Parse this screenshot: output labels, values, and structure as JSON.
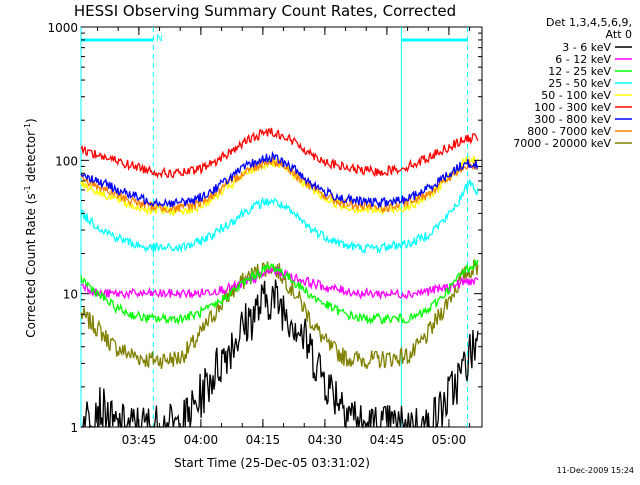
{
  "chart_data": {
    "type": "line",
    "title": "HESSI Observing Summary Count Rates, Corrected",
    "xlabel": "Start Time (25-Dec-05 03:31:02)",
    "ylabel_main": "Corrected Count Rate (s",
    "ylabel_sup1": "-1",
    "ylabel_mid": " detector",
    "ylabel_sup2": "-1",
    "ylabel_end": ")",
    "y_scale": "log",
    "ylim": [
      1,
      1000
    ],
    "xlim_minutes": [
      0,
      97
    ],
    "x_ticks": [
      {
        "min": 14,
        "label": "03:45"
      },
      {
        "min": 29,
        "label": "04:00"
      },
      {
        "min": 44,
        "label": "04:15"
      },
      {
        "min": 59,
        "label": "04:30"
      },
      {
        "min": 74,
        "label": "04:45"
      },
      {
        "min": 89,
        "label": "05:00"
      }
    ],
    "y_ticks": [
      {
        "value": 1,
        "label": "1"
      },
      {
        "value": 10,
        "label": "10"
      },
      {
        "value": 100,
        "label": "100"
      },
      {
        "value": 1000,
        "label": "1000"
      }
    ],
    "legend_header": [
      "Det 1,3,4,5,6,9,",
      "Att 0"
    ],
    "legend_position": "right",
    "footer_timestamp": "11-Dec-2009 15:24",
    "attenuator_flag": "N",
    "night_bars": [
      [
        0,
        17.5
      ],
      [
        77.5,
        93.5
      ]
    ],
    "saa_lines": [
      0,
      17.5,
      77.5,
      93.5
    ],
    "x_samples": [
      0,
      4,
      8,
      12,
      16,
      20,
      24,
      28,
      32,
      36,
      40,
      44,
      46,
      48,
      52,
      56,
      60,
      64,
      68,
      72,
      76,
      80,
      84,
      88,
      92,
      94,
      96
    ],
    "series": [
      {
        "name": "3 - 6 keV",
        "color": "#000000",
        "values": [
          1,
          1.5,
          1,
          1,
          1,
          1,
          1,
          1.5,
          2.5,
          4,
          6,
          8.5,
          9.5,
          8.5,
          6,
          3.5,
          2,
          1.5,
          1,
          1,
          1,
          1,
          1,
          1.5,
          2.5,
          3.5,
          4.5
        ]
      },
      {
        "name": "6 - 12 keV",
        "color": "#ff00ff",
        "values": [
          12,
          10,
          10,
          10,
          10,
          10,
          10,
          10,
          10.5,
          11,
          12,
          14,
          15,
          14.5,
          13,
          12,
          11,
          10.5,
          10,
          10,
          10,
          10,
          10.5,
          11,
          12,
          12.5,
          12
        ]
      },
      {
        "name": "12 - 25 keV",
        "color": "#00ff00",
        "values": [
          13,
          10,
          8,
          7,
          6.5,
          6.5,
          6.5,
          7,
          8,
          10,
          12.5,
          15,
          16,
          15,
          12,
          9.5,
          8,
          7,
          6.5,
          6.5,
          6.5,
          6.5,
          7.5,
          10,
          14,
          16,
          17
        ]
      },
      {
        "name": "25 - 50 keV",
        "color": "#00ffff",
        "values": [
          40,
          32,
          27,
          24,
          22,
          22,
          22,
          24,
          28,
          34,
          42,
          48,
          50,
          47,
          38,
          30,
          26,
          23,
          22,
          22,
          23,
          24,
          28,
          36,
          52,
          70,
          58
        ]
      },
      {
        "name": "50 - 100 keV",
        "color": "#ffff00",
        "values": [
          68,
          58,
          52,
          46,
          43,
          42,
          42,
          44,
          52,
          64,
          80,
          92,
          96,
          92,
          76,
          60,
          50,
          45,
          43,
          42,
          43,
          46,
          54,
          68,
          92,
          105,
          100
        ]
      },
      {
        "name": "100 - 300 keV",
        "color": "#ff0000",
        "values": [
          122,
          110,
          100,
          92,
          85,
          80,
          80,
          84,
          96,
          115,
          140,
          160,
          165,
          158,
          135,
          110,
          95,
          88,
          84,
          82,
          85,
          92,
          105,
          122,
          140,
          145,
          150
        ]
      },
      {
        "name": "300 - 800 keV",
        "color": "#0000ff",
        "values": [
          80,
          70,
          62,
          55,
          50,
          48,
          48,
          51,
          60,
          74,
          90,
          102,
          106,
          100,
          84,
          66,
          56,
          51,
          49,
          48,
          49,
          53,
          62,
          75,
          92,
          95,
          92
        ]
      },
      {
        "name": "800 - 7000 keV",
        "color": "#ff8000",
        "values": [
          75,
          64,
          56,
          50,
          46,
          44,
          44,
          47,
          55,
          68,
          84,
          96,
          100,
          96,
          78,
          62,
          52,
          47,
          45,
          44,
          45,
          49,
          57,
          70,
          86,
          92,
          90
        ]
      },
      {
        "name": "7000 - 20000 keV",
        "color": "#808000",
        "values": [
          7,
          5.5,
          4,
          3.5,
          3.2,
          3.2,
          3.3,
          4.5,
          7,
          10,
          13,
          15.5,
          16,
          14.5,
          10,
          6,
          4,
          3.3,
          3.2,
          3.2,
          3.3,
          3.5,
          5,
          8,
          13,
          15,
          16
        ]
      }
    ]
  }
}
